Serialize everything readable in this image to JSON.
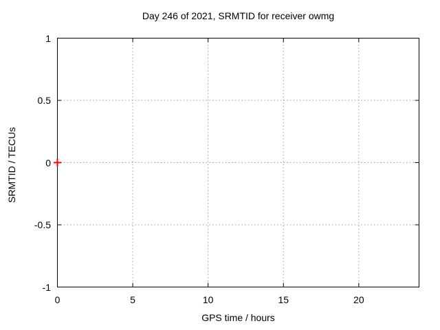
{
  "chart_data": {
    "type": "scatter",
    "title": "Day 246 of 2021, SRMTID for receiver owmg",
    "xlabel": "GPS time / hours",
    "ylabel": "SRMTID / TECUs",
    "xlim": [
      0,
      24
    ],
    "ylim": [
      -1,
      1
    ],
    "xticks": [
      0,
      5,
      10,
      15,
      20
    ],
    "xtick_labels": [
      "0",
      "5",
      "10",
      "15",
      "20"
    ],
    "yticks": [
      -1,
      -0.5,
      0,
      0.5,
      1
    ],
    "ytick_labels": [
      "-1",
      "-0.5",
      "0",
      "0.5",
      "1"
    ],
    "grid": true,
    "legend": "none",
    "series": [
      {
        "name": "SRMTID",
        "marker": "plus",
        "color": "#ff0000",
        "points": [
          [
            0,
            0
          ]
        ]
      }
    ]
  },
  "colors": {
    "background": "#ffffff",
    "border": "#000000",
    "grid": "#9a9a9a",
    "text": "#000000",
    "marker": "#ff0000"
  }
}
